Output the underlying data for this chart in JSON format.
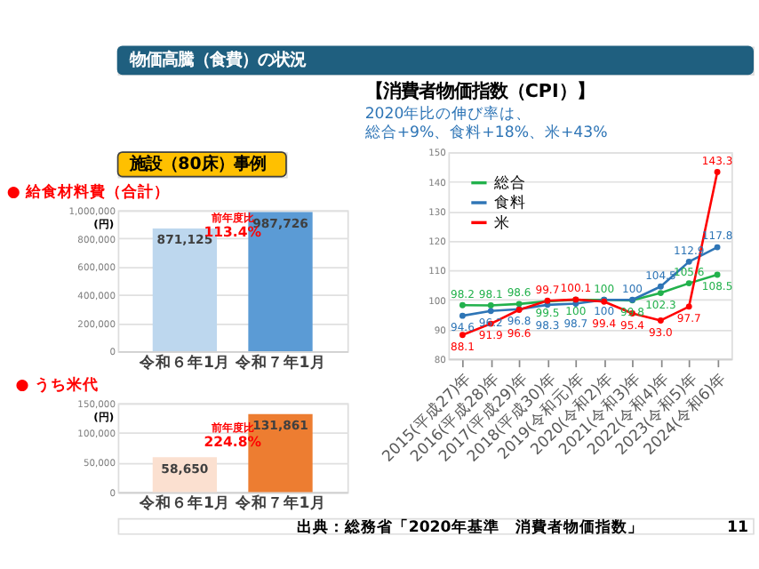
{
  "chart_data": [
    {
      "type": "bar",
      "title": "● 給食材料費（合計）",
      "ylabel": "(円)",
      "categories": [
        "令和６年1月",
        "令和７年1月"
      ],
      "values": [
        871125,
        987726
      ],
      "colors": [
        "#bdd7ee",
        "#5b9bd5"
      ],
      "value_labels": [
        "871,125",
        "987,726"
      ],
      "ylim": [
        0,
        1000000
      ],
      "yticks": [
        {
          "value": 0,
          "label": "0"
        },
        {
          "value": 200000,
          "label": "200,000"
        },
        {
          "value": 400000,
          "label": "400,000"
        },
        {
          "value": 600000,
          "label": "600,000"
        },
        {
          "value": 800000,
          "label": "800,000"
        },
        {
          "value": 1000000,
          "label": "1,000,000"
        }
      ],
      "grid": "y",
      "annotations": [
        "物価高騰（食費）の状況",
        "施設（80床）事例",
        "前年度比",
        "113.4%"
      ]
    },
    {
      "type": "bar",
      "title": "● うち米代",
      "ylabel": "(円)",
      "categories": [
        "令和６年1月",
        "令和７年1月"
      ],
      "values": [
        58650,
        131861
      ],
      "colors": [
        "#fbe0d0",
        "#ed7d31"
      ],
      "value_labels": [
        "58,650",
        "131,861"
      ],
      "ylim": [
        0,
        150000
      ],
      "yticks": [
        {
          "value": 0,
          "label": "0"
        },
        {
          "value": 50000,
          "label": "50,000"
        },
        {
          "value": 100000,
          "label": "100,000"
        },
        {
          "value": 150000,
          "label": "150,000"
        }
      ],
      "grid": "y",
      "annotations": [
        "前年度比",
        "224.8%"
      ]
    },
    {
      "type": "line",
      "title": "【消費者物価指数（CPI）】",
      "subtitle": "2020年比の伸び率は、",
      "categories": [
        "2015(平成27)年",
        "2016(平成28)年",
        "2017(平成29)年",
        "2018(平成30)年",
        "2019(令和元)年",
        "2020(令和2)年",
        "2021(令和3)年",
        "2022(令和4)年",
        "2023(令和5)年",
        "2024(令和6)年"
      ],
      "series": [
        {
          "name": "総合",
          "color": "#22b14c",
          "values": [
            98.2,
            98.1,
            98.6,
            99.5,
            100,
            100,
            99.8,
            102.3,
            105.6,
            108.5
          ],
          "value_labels": [
            "98.2",
            "98.1",
            "98.6",
            "99.5",
            "100",
            "100",
            "99.8",
            "102.3",
            "105.6",
            "108.5"
          ]
        },
        {
          "name": "食料",
          "color": "#2e75b6",
          "values": [
            94.6,
            96.2,
            96.8,
            98.3,
            98.7,
            100,
            100,
            104.5,
            112.9,
            117.8
          ],
          "value_labels": [
            "94.6",
            "96.2",
            "96.8",
            "98.3",
            "98.7",
            "100",
            "100",
            "104.5",
            "112.9",
            "117.8"
          ]
        },
        {
          "name": "米",
          "color": "#ff0000",
          "values": [
            88.1,
            91.9,
            96.6,
            99.7,
            100.1,
            99.4,
            95.4,
            93.0,
            97.7,
            143.3
          ],
          "value_labels": [
            "88.1",
            "91.9",
            "96.6",
            "99.7",
            "100.1",
            "99.4",
            "95.4",
            "93.0",
            "97.7",
            "143.3"
          ]
        }
      ],
      "ylim": [
        80,
        150
      ],
      "yticks": [
        80,
        90,
        100,
        110,
        120,
        130,
        140,
        150
      ],
      "grid": "y",
      "legend": "top left",
      "marker": "circle",
      "line_style": "solid",
      "annotations": [
        "総合+9%、食料+18%、米+43%",
        "出典：総務省「2020年基準　消費者物価指数」",
        "11"
      ]
    }
  ]
}
